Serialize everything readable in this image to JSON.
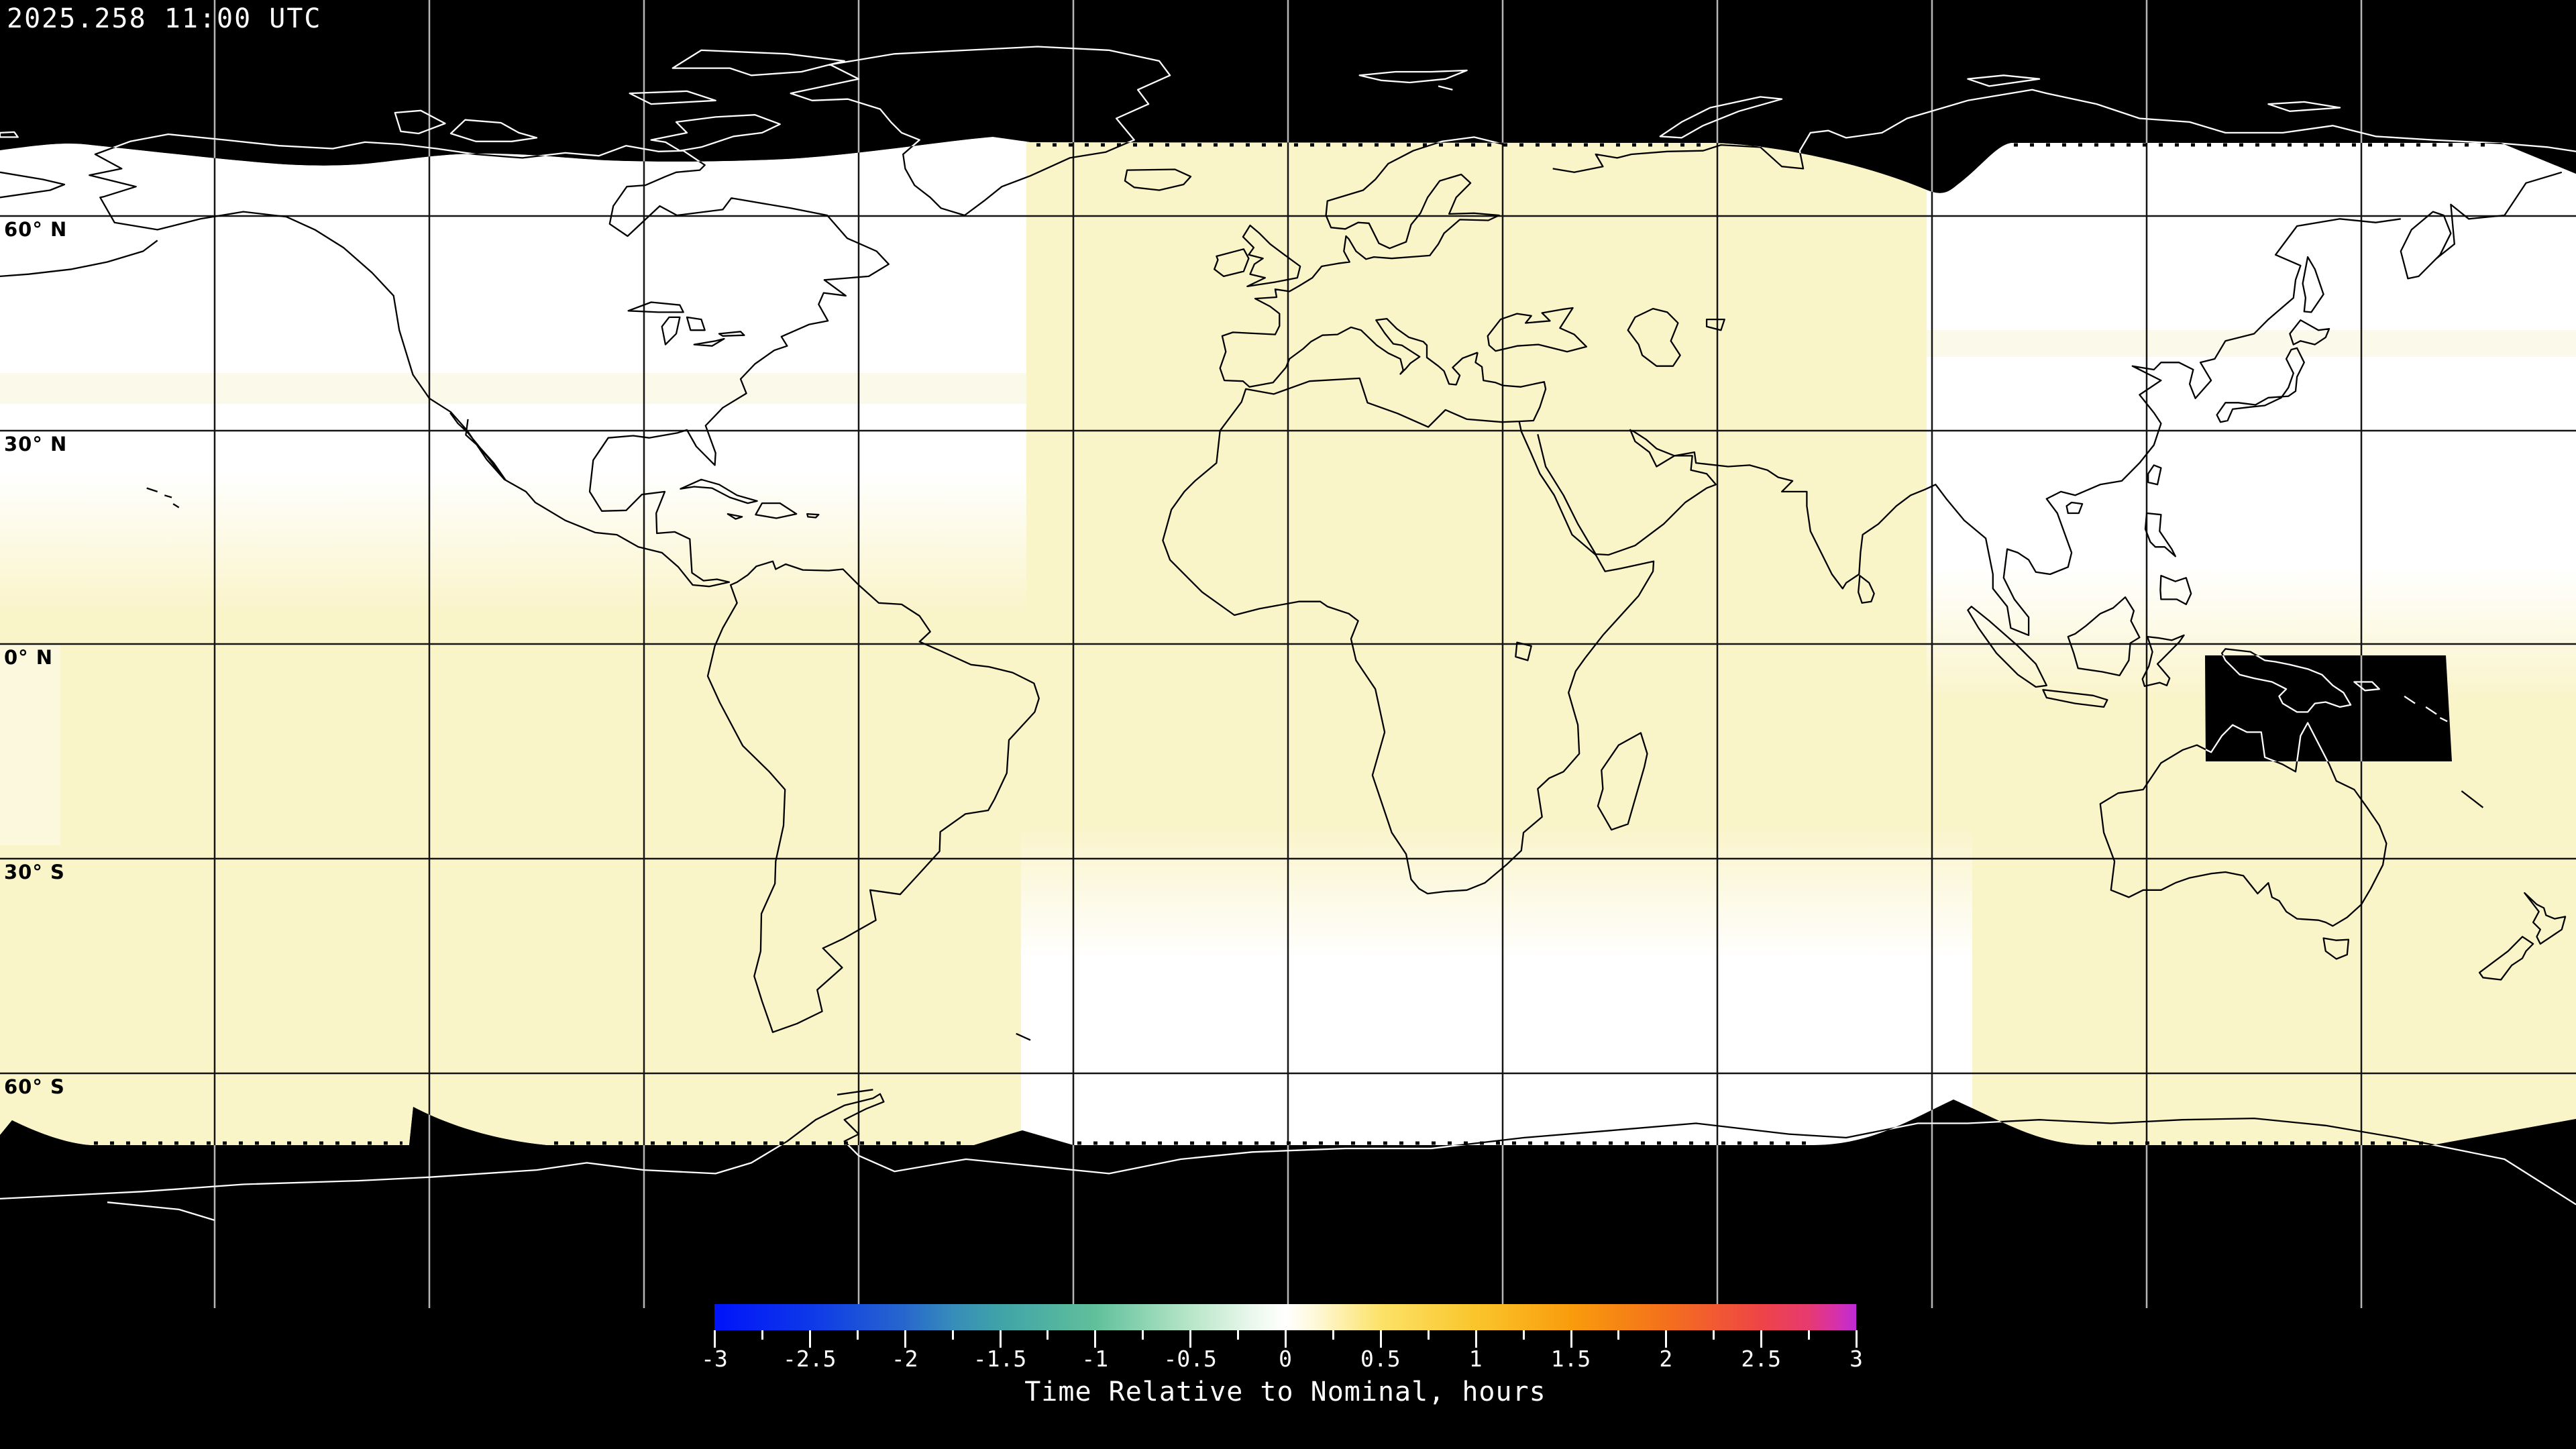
{
  "timestamp": "2025.258 11:00 UTC",
  "latitude_labels": [
    "60° N",
    "30° N",
    "0° N",
    "30° S",
    "60° S"
  ],
  "grid": {
    "lon_step_deg": 30,
    "lat_step_deg": 30
  },
  "colorbar": {
    "title": "Time Relative to Nominal, hours",
    "range": {
      "min": -3,
      "max": 3
    },
    "tick_labels": [
      "-3",
      "-2.5",
      "-2",
      "-1.5",
      "-1",
      "-0.5",
      "0",
      "0.5",
      "1",
      "1.5",
      "2",
      "2.5",
      "3"
    ],
    "minor_tick_step": 0.25,
    "gradient": [
      {
        "value": -3,
        "color": "#0013fa"
      },
      {
        "value": -2.5,
        "color": "#0d38e8"
      },
      {
        "value": -2,
        "color": "#2767cd"
      },
      {
        "value": -1.75,
        "color": "#368cba"
      },
      {
        "value": -1.5,
        "color": "#3fa3a8"
      },
      {
        "value": -1,
        "color": "#60c09b"
      },
      {
        "value": -0.5,
        "color": "#b7e6c8"
      },
      {
        "value": -0.15,
        "color": "#eef9ee"
      },
      {
        "value": 0,
        "color": "#ffffff"
      },
      {
        "value": 0.15,
        "color": "#fff9dc"
      },
      {
        "value": 0.5,
        "color": "#fce268"
      },
      {
        "value": 1,
        "color": "#fac52b"
      },
      {
        "value": 1.5,
        "color": "#f99c0c"
      },
      {
        "value": 2,
        "color": "#f4701c"
      },
      {
        "value": 2.5,
        "color": "#ee4447"
      },
      {
        "value": 2.75,
        "color": "#e73a70"
      },
      {
        "value": 2.9,
        "color": "#d630ae"
      },
      {
        "value": 3,
        "color": "#be2bd6"
      }
    ]
  },
  "colors": {
    "background": "#000000",
    "no_data": "#000000",
    "data_near_zero": "#ffffff",
    "data_plus_quarter_hour": "#faf4c9",
    "coast_on_light": "#000000",
    "coast_on_dark": "#ffffff",
    "gridline_on_light": "#141414",
    "gridline_on_dark": "#b5b5b5",
    "label_on_map": "#000000",
    "label_on_black": "#ffffff"
  }
}
